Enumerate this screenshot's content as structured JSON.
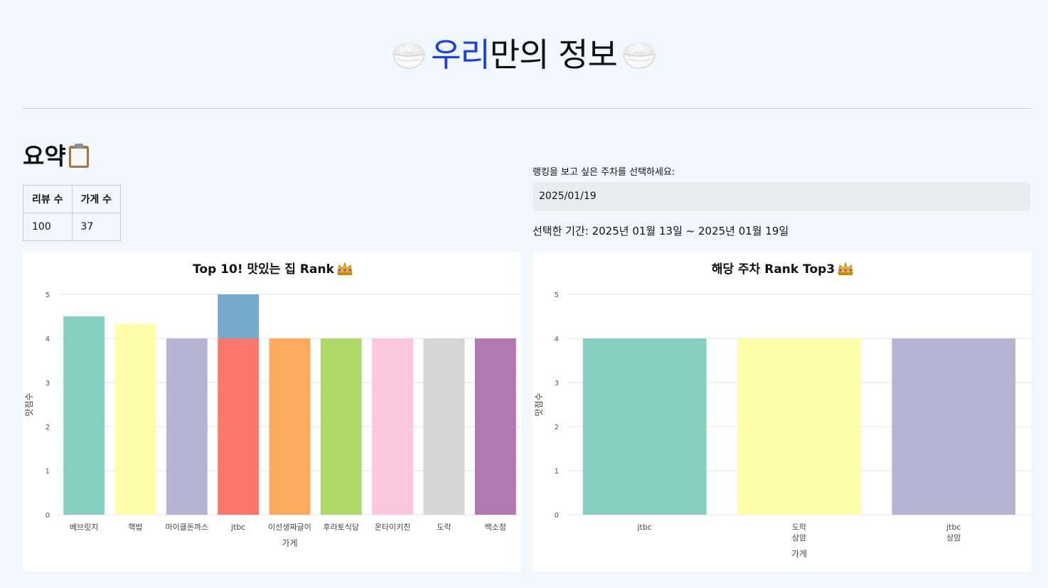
{
  "header": {
    "title_accent": "우리",
    "title_rest": "만의 정보",
    "left_icon": "rice-bowl-icon",
    "right_icon": "rice-bowl-icon"
  },
  "summary": {
    "title": "요약",
    "title_icon": "clipboard-icon",
    "columns": [
      "리뷰 수",
      "가게 수"
    ],
    "values": [
      "100",
      "37"
    ]
  },
  "week_selector": {
    "label": "랭킹을 보고 싶은 주차를 선택하세요:",
    "value": "2025/01/19",
    "period": "선택한 기간: 2025년 01월 13일 ~ 2025년 01월 19일"
  },
  "chart_data": [
    {
      "type": "bar",
      "title": "Top 10! 맛있는 집 Rank",
      "title_icon": "crown-icon",
      "xlabel": "가게",
      "ylabel": "맛점수",
      "ylim": [
        0,
        5
      ],
      "yticks": [
        0,
        1,
        2,
        3,
        4,
        5
      ],
      "categories": [
        "베브릿지",
        "핵밥",
        "마이클돈까스",
        "jtbc",
        "이선생짜글이",
        "후라토식당",
        "온타이키친",
        "도락",
        "백소정"
      ],
      "bars": [
        {
          "category": "베브릿지",
          "base": 0,
          "value": 4.5,
          "color": "#85cec1"
        },
        {
          "category": "핵밥",
          "base": 0,
          "value": 4.33,
          "color": "#fefeaa"
        },
        {
          "category": "마이클돈까스",
          "base": 0,
          "value": 4,
          "color": "#b6b3d4"
        },
        {
          "category": "jtbc",
          "base": 0,
          "value": 4,
          "color": "#fd786c"
        },
        {
          "category": "jtbc",
          "base": 4,
          "value": 5,
          "color": "#76aacd"
        },
        {
          "category": "이선생짜글이",
          "base": 0,
          "value": 4,
          "color": "#fdaa5e"
        },
        {
          "category": "후라토식당",
          "base": 0,
          "value": 4,
          "color": "#afd968"
        },
        {
          "category": "온타이키친",
          "base": 0,
          "value": 4,
          "color": "#fcc6e1"
        },
        {
          "category": "도락",
          "base": 0,
          "value": 4,
          "color": "#d6d6d6"
        },
        {
          "category": "백소정",
          "base": 0,
          "value": 4,
          "color": "#b377b1"
        }
      ],
      "grid": true,
      "legend": "none"
    },
    {
      "type": "bar",
      "title": "해당 주차 Rank Top3",
      "title_icon": "crown-icon",
      "xlabel": "가게",
      "ylabel": "맛점수",
      "ylim": [
        0,
        5
      ],
      "yticks": [
        0,
        1,
        2,
        3,
        4,
        5
      ],
      "categories": [
        [
          "jtbc"
        ],
        [
          "도락",
          "상암"
        ],
        [
          "jtbc",
          "상암"
        ]
      ],
      "bars": [
        {
          "category": "jtbc",
          "base": 0,
          "value": 4,
          "color": "#85cec1"
        },
        {
          "category": "도락 상암",
          "base": 0,
          "value": 4,
          "color": "#fefeaa"
        },
        {
          "category": "jtbc 상암",
          "base": 0,
          "value": 4,
          "color": "#b6b3d4"
        }
      ],
      "grid": true,
      "legend": "none"
    }
  ]
}
